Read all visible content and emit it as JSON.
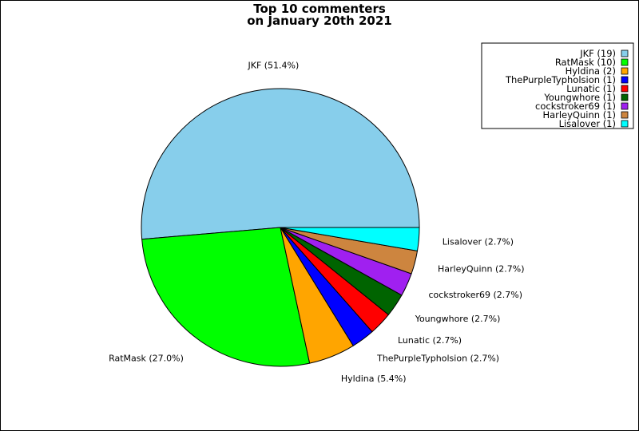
{
  "chart_data": {
    "type": "pie",
    "title_lines": [
      "Top 10 commenters",
      "on January 20th 2021"
    ],
    "legend_placement": "top-right",
    "slices": [
      {
        "label": "JKF",
        "value": 19,
        "percent": "51.4%",
        "color": "#87ceeb"
      },
      {
        "label": "RatMask",
        "value": 10,
        "percent": "27.0%",
        "color": "#00ff00"
      },
      {
        "label": "Hyldina",
        "value": 2,
        "percent": "5.4%",
        "color": "#ffa500"
      },
      {
        "label": "ThePurpleTypholsion",
        "value": 1,
        "percent": "2.7%",
        "color": "#0000ff"
      },
      {
        "label": "Lunatic",
        "value": 1,
        "percent": "2.7%",
        "color": "#ff0000"
      },
      {
        "label": "Youngwhore",
        "value": 1,
        "percent": "2.7%",
        "color": "#006400"
      },
      {
        "label": "cockstroker69",
        "value": 1,
        "percent": "2.7%",
        "color": "#a020f0"
      },
      {
        "label": "HarleyQuinn",
        "value": 1,
        "percent": "2.7%",
        "color": "#cd853f"
      },
      {
        "label": "Lisalover",
        "value": 1,
        "percent": "2.7%",
        "color": "#00ffff"
      }
    ]
  }
}
